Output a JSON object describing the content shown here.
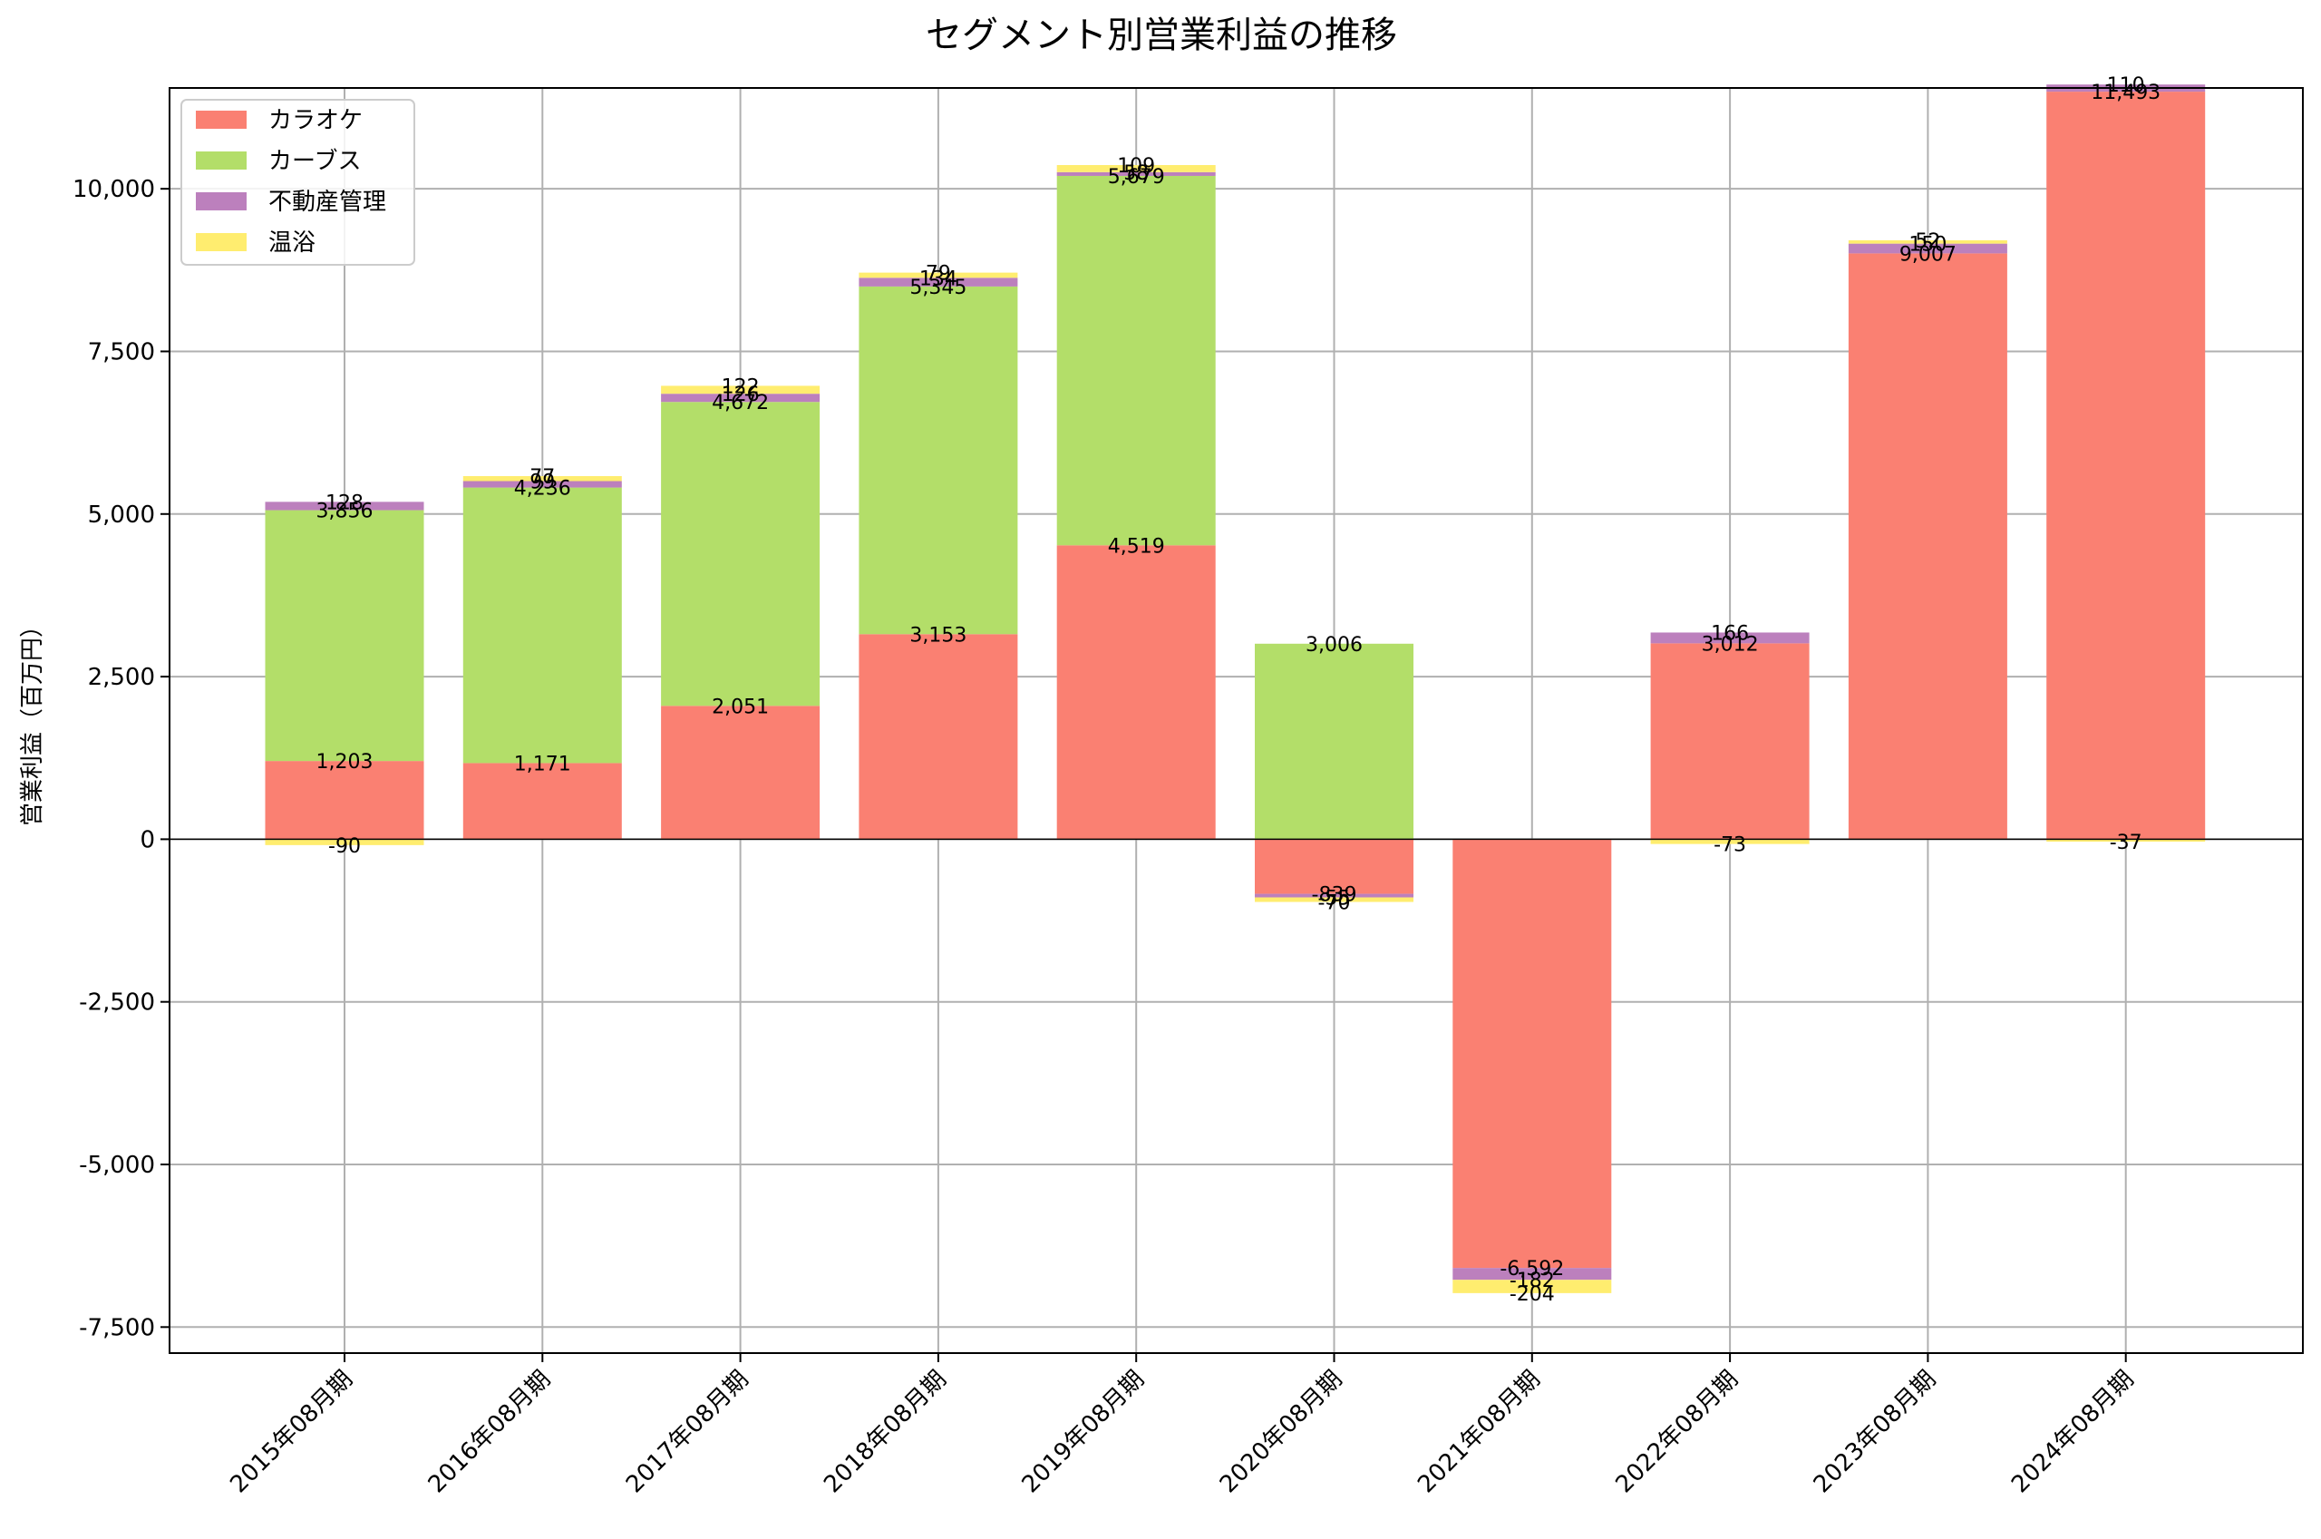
{
  "chart_data": {
    "type": "bar",
    "stacked": true,
    "title": "セグメント別営業利益の推移",
    "xlabel": "",
    "ylabel": "営業利益（百万円）",
    "ylim": [
      -7900,
      11550
    ],
    "yticks": [
      -7500,
      -5000,
      -2500,
      0,
      2500,
      5000,
      7500,
      10000
    ],
    "ytick_labels": [
      "-7,500",
      "-5,000",
      "-2,500",
      "0",
      "2,500",
      "5,000",
      "7,500",
      "10,000"
    ],
    "grid": true,
    "legend_position": "top-left",
    "categories": [
      "2015年08月期",
      "2016年08月期",
      "2017年08月期",
      "2018年08月期",
      "2019年08月期",
      "2020年08月期",
      "2021年08月期",
      "2022年08月期",
      "2023年08月期",
      "2024年08月期"
    ],
    "series": [
      {
        "name": "カラオケ",
        "color": "#fa8072",
        "values": [
          1203,
          1171,
          2051,
          3153,
          4519,
          -839,
          -6592,
          3012,
          9007,
          11493
        ],
        "labels": [
          "1,203",
          "1,171",
          "2,051",
          "3,153",
          "4,519",
          "-839",
          "-6,592",
          "3,012",
          "9,007",
          "11,493"
        ]
      },
      {
        "name": "カーブス",
        "color": "#b3de69",
        "values": [
          3856,
          4236,
          4672,
          5345,
          5679,
          3006,
          null,
          null,
          null,
          null
        ],
        "labels": [
          "3,856",
          "4,236",
          "4,672",
          "5,345",
          "5,679",
          "3,006",
          "",
          "",
          "",
          ""
        ]
      },
      {
        "name": "不動産管理",
        "color": "#bc80bd",
        "values": [
          128,
          99,
          126,
          134,
          58,
          -55,
          -182,
          166,
          150,
          110
        ],
        "labels": [
          "128",
          "99",
          "126",
          "134",
          "58",
          "-55",
          "-182",
          "166",
          "150",
          "110"
        ]
      },
      {
        "name": "温浴",
        "color": "#ffed6f",
        "values": [
          -90,
          77,
          122,
          79,
          109,
          -70,
          -204,
          -73,
          52,
          -37
        ],
        "labels": [
          "-90",
          "77",
          "122",
          "79",
          "109",
          "-70",
          "-204",
          "-73",
          "52",
          "-37"
        ]
      }
    ]
  }
}
